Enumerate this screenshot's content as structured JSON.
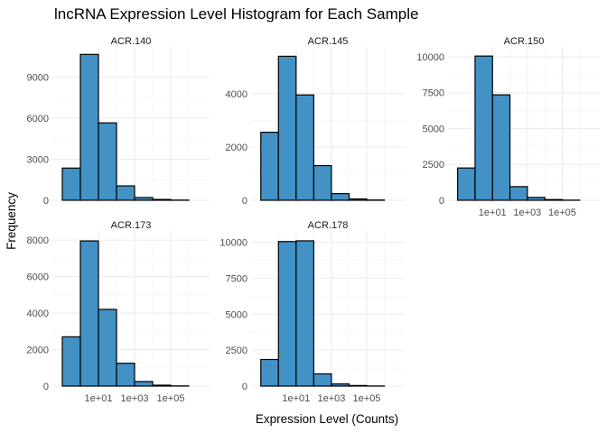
{
  "chart_data": {
    "type": "bar",
    "title": "lncRNA Expression Level Histogram for Each Sample",
    "xlabel": "Expression Level (Counts)",
    "ylabel": "Frequency",
    "x_scale": "log10",
    "x_ticks": [
      "1e+01",
      "1e+03",
      "1e+05"
    ],
    "bin_width_log10": 1,
    "bin_starts_log10": [
      -1,
      0,
      1,
      2,
      3,
      4,
      5,
      6
    ],
    "grid": true,
    "legend": "none",
    "bar_fill": "#4292c6",
    "bar_stroke": "#000000",
    "panels": [
      {
        "name": "ACR.140",
        "values": [
          2350,
          10650,
          5650,
          1050,
          200,
          60,
          15,
          0
        ],
        "ylim": [
          0,
          11000
        ],
        "yticks": [
          0,
          3000,
          6000,
          9000
        ],
        "ytick_labels": [
          "0",
          "3000",
          "6000",
          "9000"
        ]
      },
      {
        "name": "ACR.145",
        "values": [
          2550,
          5400,
          3950,
          1300,
          250,
          50,
          10,
          0
        ],
        "ylim": [
          0,
          5650
        ],
        "yticks": [
          0,
          2000,
          4000
        ],
        "ytick_labels": [
          "0",
          "2000",
          "4000"
        ]
      },
      {
        "name": "ACR.150",
        "values": [
          2250,
          10050,
          7350,
          950,
          200,
          50,
          10,
          0
        ],
        "ylim": [
          0,
          10500
        ],
        "yticks": [
          0,
          2500,
          5000,
          7500,
          10000
        ],
        "ytick_labels": [
          "0",
          "2500",
          "5000",
          "7500",
          "10000"
        ]
      },
      {
        "name": "ACR.173",
        "values": [
          2700,
          7950,
          4200,
          1250,
          250,
          50,
          10,
          0
        ],
        "ylim": [
          0,
          8350
        ],
        "yticks": [
          0,
          2000,
          4000,
          6000,
          8000
        ],
        "ytick_labels": [
          "0",
          "2000",
          "4000",
          "6000",
          "8000"
        ]
      },
      {
        "name": "ACR.178",
        "values": [
          1850,
          10050,
          10100,
          850,
          150,
          40,
          10,
          0
        ],
        "ylim": [
          0,
          10600
        ],
        "yticks": [
          0,
          2500,
          5000,
          7500,
          10000
        ],
        "ytick_labels": [
          "0",
          "2500",
          "5000",
          "7500",
          "10000"
        ]
      }
    ]
  }
}
